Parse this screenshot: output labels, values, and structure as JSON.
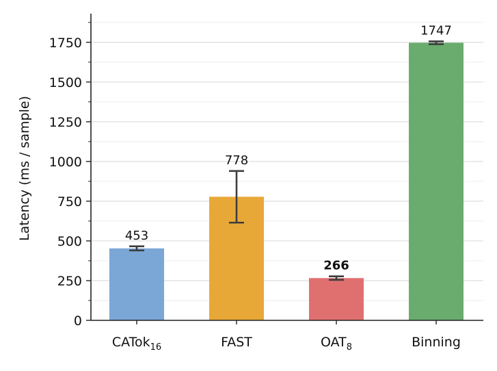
{
  "chart_data": {
    "type": "bar",
    "title": "",
    "xlabel": "",
    "ylabel": "Latency (ms / sample)",
    "ylim": [
      0,
      1930
    ],
    "yticks": [
      0,
      250,
      500,
      750,
      1000,
      1250,
      1500,
      1750
    ],
    "minor_tick_step": 125,
    "grid": "horizontal",
    "legend": "none",
    "categories": [
      {
        "name": "CATok",
        "subscript": "16"
      },
      {
        "name": "FAST",
        "subscript": ""
      },
      {
        "name": "OAT",
        "subscript": "8"
      },
      {
        "name": "Binning",
        "subscript": ""
      }
    ],
    "series": [
      {
        "values": [
          453,
          778,
          266,
          1747
        ],
        "error_low": [
          440,
          615,
          255,
          1738
        ],
        "error_high": [
          466,
          940,
          277,
          1756
        ],
        "labels": [
          "453",
          "778",
          "266",
          "1747"
        ],
        "label_bold": [
          false,
          false,
          true,
          false
        ],
        "colors": [
          "#7BA7D6",
          "#E8A838",
          "#E07070",
          "#6AAB6E"
        ]
      }
    ],
    "error_bar_color": "#3d3d3d"
  }
}
